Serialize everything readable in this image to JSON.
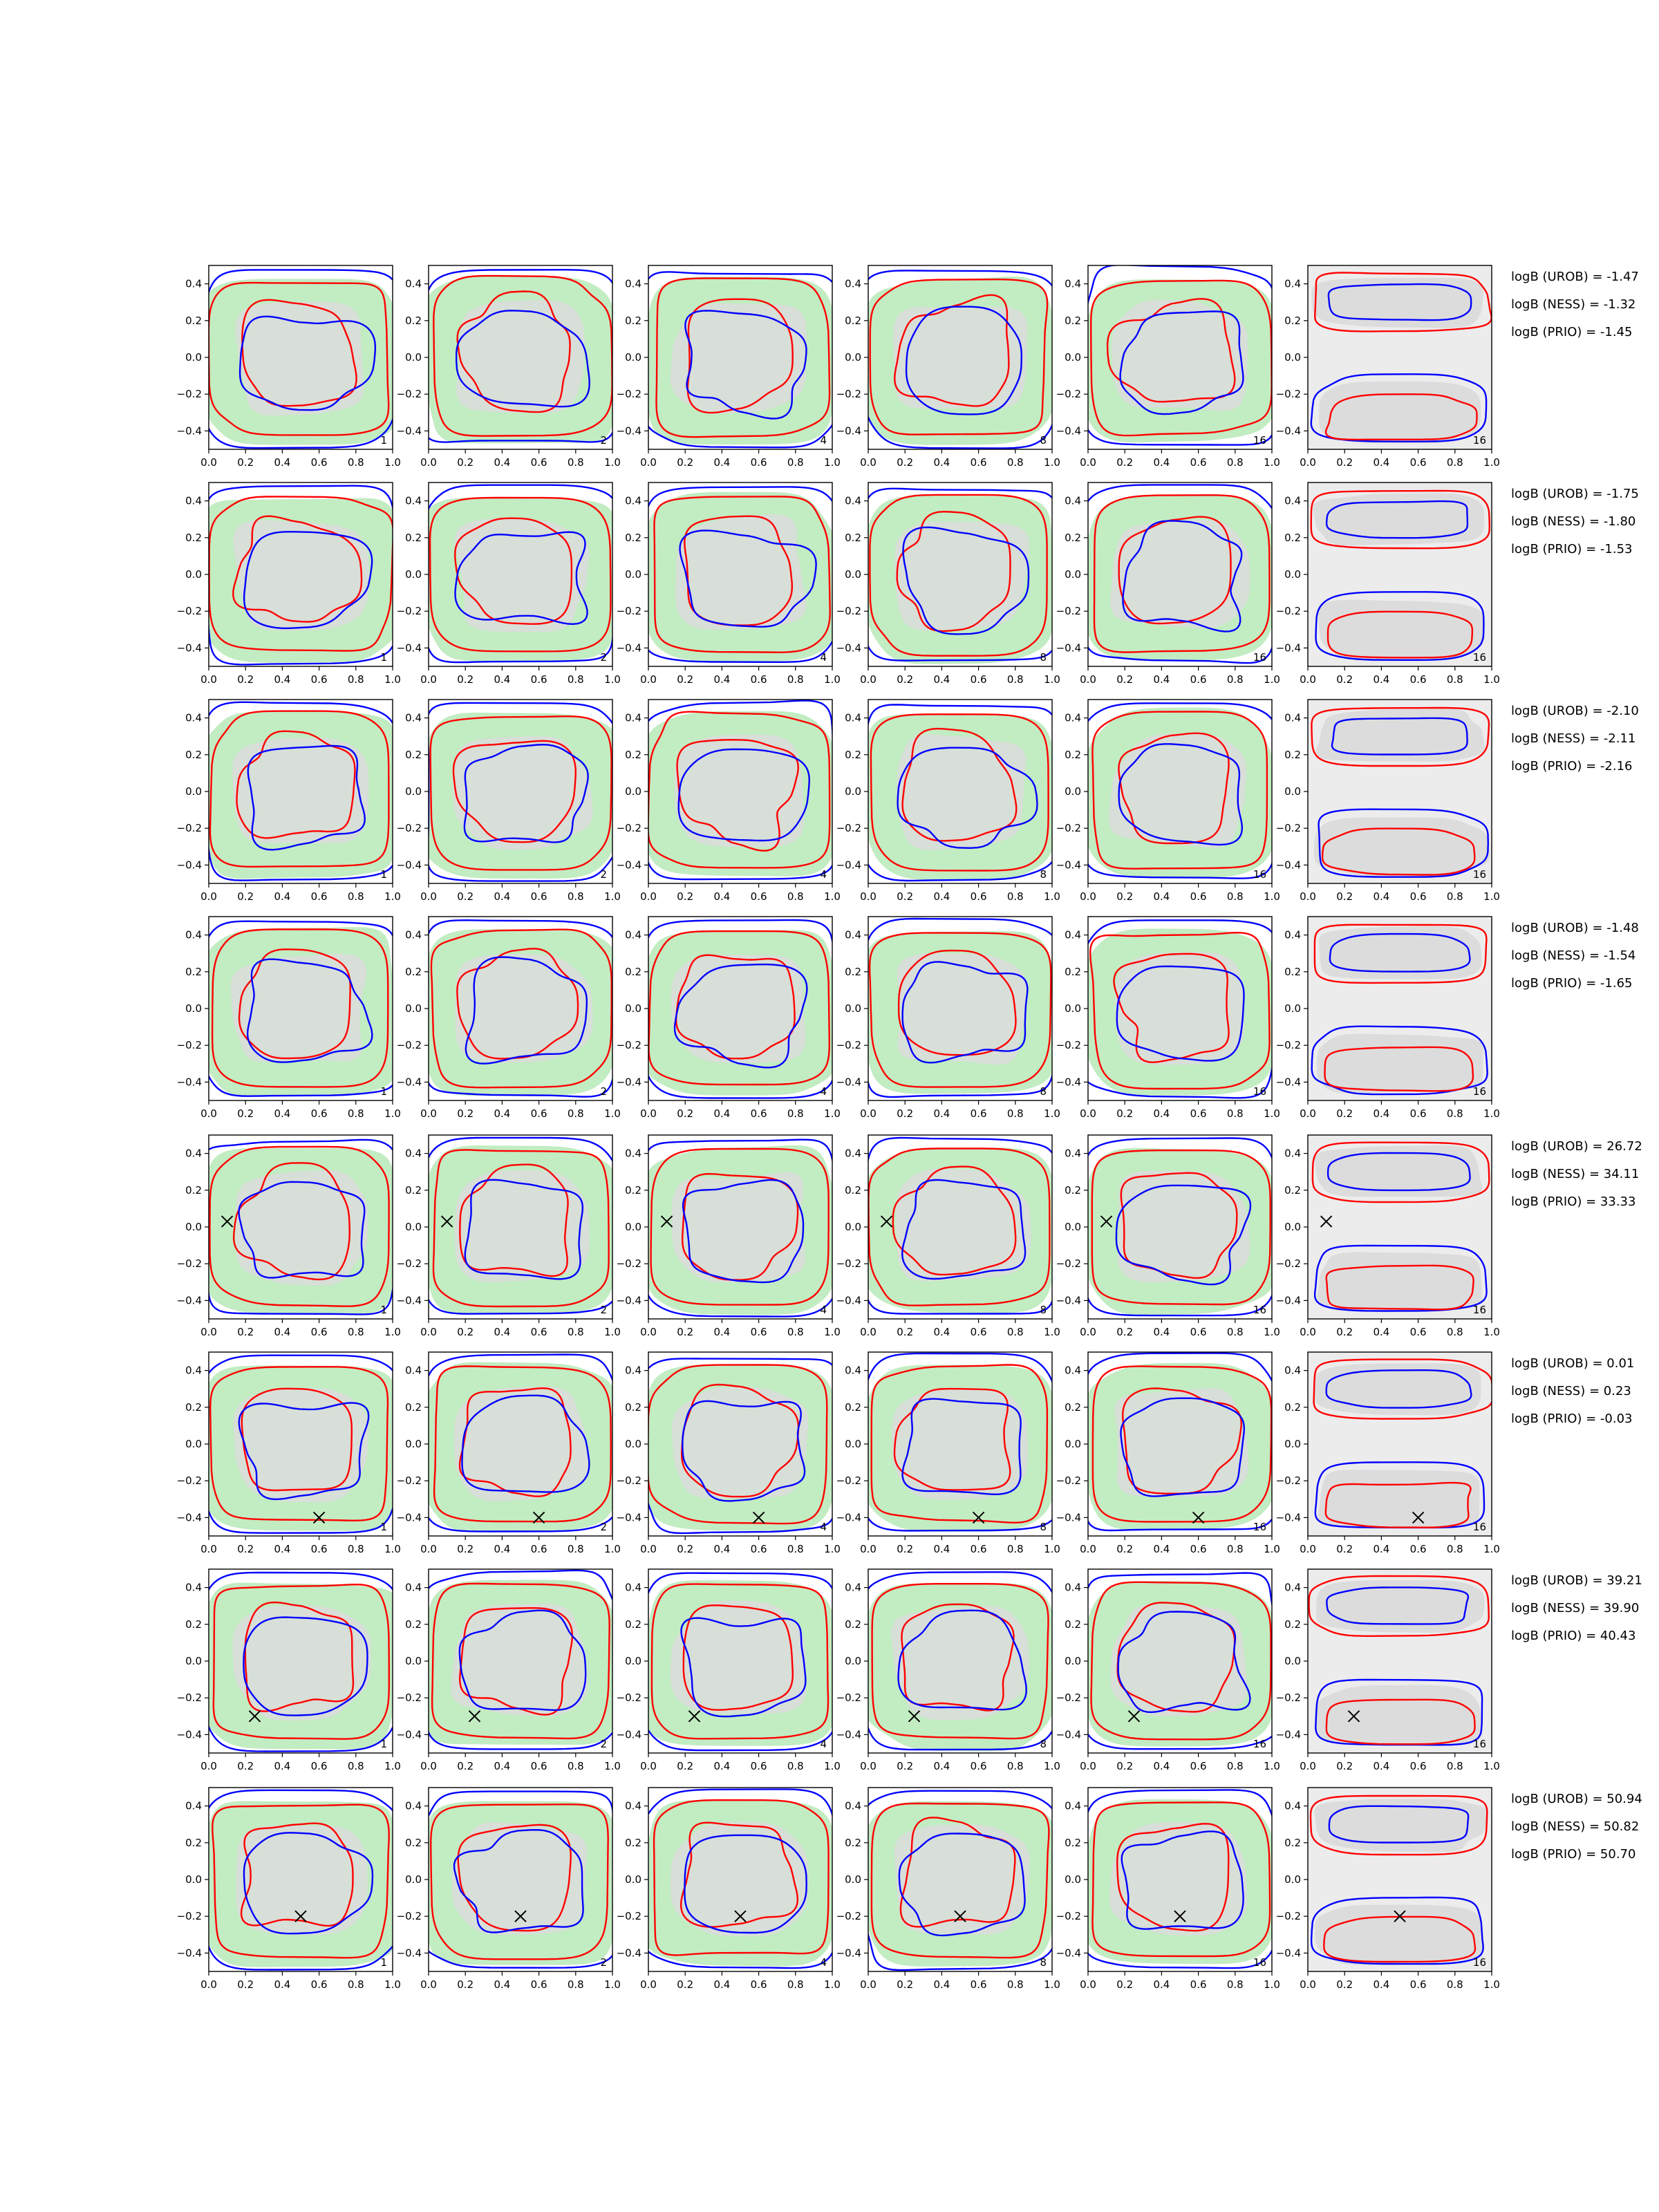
{
  "chart_data": {
    "type": "contour-grid",
    "xlim": [
      0.0,
      1.0
    ],
    "ylim": [
      -0.5,
      0.5
    ],
    "x_ticks": [
      "0.0",
      "0.2",
      "0.4",
      "0.6",
      "0.8",
      "1.0"
    ],
    "y_ticks": [
      "0.4",
      "0.2",
      "0.0",
      "−0.2",
      "−0.4"
    ],
    "column_labels": [
      "1",
      "2",
      "4",
      "8",
      "16",
      "16"
    ],
    "colors": {
      "fill_green": "#c2ecc2",
      "fill_grey": "#dcdcdc",
      "last_col_bg": "#ececec",
      "contour_red": "#ff0000",
      "contour_blue": "#0000ff",
      "marker": "#000000"
    },
    "rows": [
      {
        "marker": null,
        "logB": {
          "urob": "logB (UROB) = -1.47",
          "ness": "logB (NESS) = -1.32",
          "prio": "logB (PRIO) = -1.45"
        }
      },
      {
        "marker": null,
        "logB": {
          "urob": "logB (UROB) = -1.75",
          "ness": "logB (NESS) = -1.80",
          "prio": "logB (PRIO) = -1.53"
        }
      },
      {
        "marker": null,
        "logB": {
          "urob": "logB (UROB) = -2.10",
          "ness": "logB (NESS) = -2.11",
          "prio": "logB (PRIO) = -2.16"
        }
      },
      {
        "marker": null,
        "logB": {
          "urob": "logB (UROB) = -1.48",
          "ness": "logB (NESS) = -1.54",
          "prio": "logB (PRIO) = -1.65"
        }
      },
      {
        "marker": {
          "x": 0.1,
          "y": 0.03
        },
        "logB": {
          "urob": "logB (UROB) = 26.72",
          "ness": "logB (NESS) = 34.11",
          "prio": "logB (PRIO) = 33.33"
        }
      },
      {
        "marker": {
          "x": 0.6,
          "y": -0.4
        },
        "logB": {
          "urob": "logB (UROB) = 0.01",
          "ness": "logB (NESS) = 0.23",
          "prio": "logB (PRIO) = -0.03"
        }
      },
      {
        "marker": {
          "x": 0.25,
          "y": -0.3
        },
        "logB": {
          "urob": "logB (UROB) = 39.21",
          "ness": "logB (NESS) = 39.90",
          "prio": "logB (PRIO) = 40.43"
        }
      },
      {
        "marker": {
          "x": 0.5,
          "y": -0.2
        },
        "logB": {
          "urob": "logB (UROB) = 50.94",
          "ness": "logB (NESS) = 50.82",
          "prio": "logB (PRIO) = 50.70"
        }
      }
    ]
  }
}
